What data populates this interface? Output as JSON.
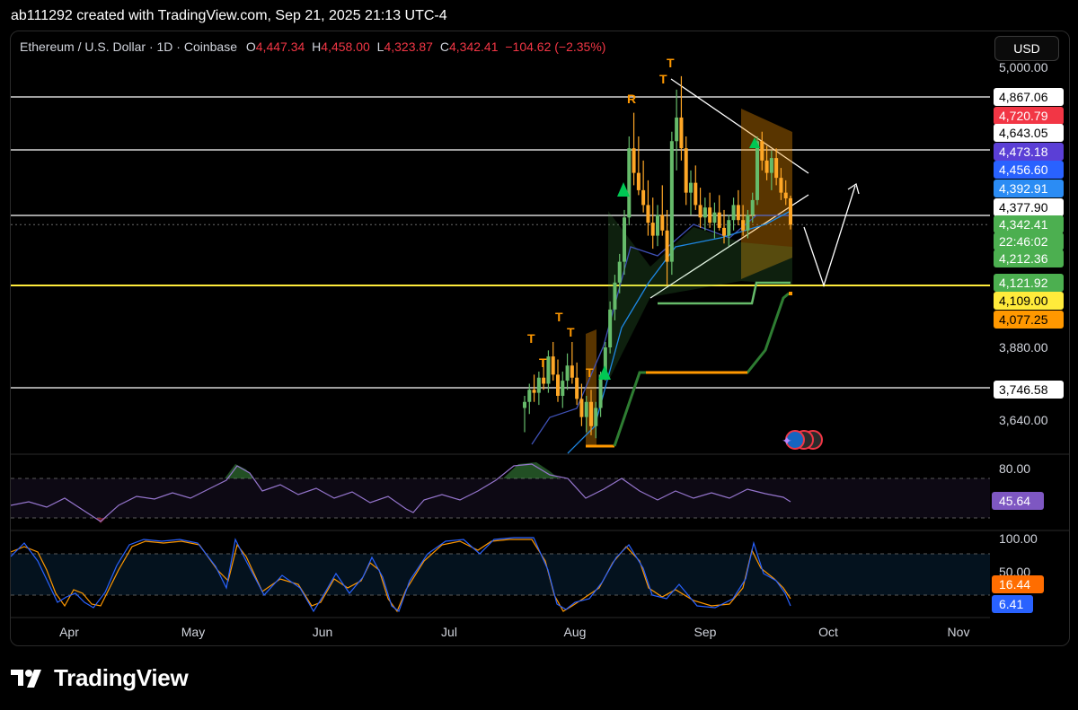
{
  "header": {
    "caption": "ab111292 created with TradingView.com, Sep 21, 2025 21:13 UTC-4"
  },
  "legend": {
    "symbol": "Ethereum / U.S. Dollar · 1D · Coinbase",
    "open_label": "O",
    "open": "4,447.34",
    "high_label": "H",
    "high": "4,458.00",
    "low_label": "L",
    "low": "4,323.87",
    "close_label": "C",
    "close": "4,342.41",
    "change": "−104.62 (−2.35%)"
  },
  "currency_button": "USD",
  "brand": {
    "name": "TradingView",
    "logo_icon": "tradingview-logo-icon"
  },
  "chart_data": {
    "type": "candlestick",
    "price_axis": {
      "ticks": [
        "5,000.00",
        "3,880.00",
        "3,640.00"
      ],
      "badges": [
        {
          "value": 4867.06,
          "label": "4,867.06",
          "bg": "#ffffff",
          "fg": "#000000"
        },
        {
          "value": 4720.79,
          "label": "4,720.79",
          "bg": "#f23645",
          "fg": "#ffffff"
        },
        {
          "value": 4643.05,
          "label": "4,643.05",
          "bg": "#ffffff",
          "fg": "#000000"
        },
        {
          "value": 4473.18,
          "label": "4,473.18",
          "bg": "#5b3fd6",
          "fg": "#ffffff"
        },
        {
          "value": 4456.6,
          "label": "4,456.60",
          "bg": "#2962ff",
          "fg": "#ffffff"
        },
        {
          "value": 4392.91,
          "label": "4,392.91",
          "bg": "#2b8cf4",
          "fg": "#ffffff"
        },
        {
          "value": 4377.9,
          "label": "4,377.90",
          "bg": "#ffffff",
          "fg": "#000000"
        },
        {
          "value": 4342.41,
          "label": "4,342.41",
          "bg": "#4caf50",
          "fg": "#ffffff"
        },
        {
          "value": 4342.41,
          "label": "22:46:02",
          "bg": "#4caf50",
          "fg": "#ffffff"
        },
        {
          "value": 4212.36,
          "label": "4,212.36",
          "bg": "#4caf50",
          "fg": "#ffffff"
        },
        {
          "value": 4121.92,
          "label": "4,121.92",
          "bg": "#4caf50",
          "fg": "#ffffff"
        },
        {
          "value": 4109.0,
          "label": "4,109.00",
          "bg": "#ffeb3b",
          "fg": "#000000"
        },
        {
          "value": 4077.25,
          "label": "4,077.25",
          "bg": "#ff9800",
          "fg": "#000000"
        },
        {
          "value": 3746.58,
          "label": "3,746.58",
          "bg": "#ffffff",
          "fg": "#000000"
        }
      ]
    },
    "horizontal_levels": [
      {
        "value": 4867.06,
        "color": "#ffffff"
      },
      {
        "value": 4643.05,
        "color": "#ffffff"
      },
      {
        "value": 4377.9,
        "color": "#ffffff"
      },
      {
        "value": 4109.0,
        "color": "#ffeb3b"
      },
      {
        "value": 3746.58,
        "color": "#ffffff"
      }
    ],
    "time_axis": [
      "Apr",
      "May",
      "Jun",
      "Jul",
      "Aug",
      "Sep",
      "Oct",
      "Nov"
    ],
    "candles": [
      [
        3680,
        3720,
        3600,
        3700
      ],
      [
        3700,
        3760,
        3660,
        3740
      ],
      [
        3740,
        3790,
        3700,
        3730
      ],
      [
        3730,
        3800,
        3690,
        3780
      ],
      [
        3780,
        3840,
        3740,
        3760
      ],
      [
        3760,
        3870,
        3730,
        3850
      ],
      [
        3850,
        3900,
        3770,
        3790
      ],
      [
        3790,
        3840,
        3700,
        3720
      ],
      [
        3720,
        3800,
        3680,
        3770
      ],
      [
        3770,
        3860,
        3740,
        3820
      ],
      [
        3820,
        3900,
        3760,
        3780
      ],
      [
        3780,
        3830,
        3690,
        3710
      ],
      [
        3710,
        3760,
        3620,
        3650
      ],
      [
        3650,
        3720,
        3600,
        3700
      ],
      [
        3700,
        3740,
        3590,
        3620
      ],
      [
        3620,
        3700,
        3580,
        3680
      ],
      [
        3680,
        3800,
        3650,
        3790
      ],
      [
        3790,
        3900,
        3770,
        3880
      ],
      [
        3880,
        4050,
        3860,
        4020
      ],
      [
        4020,
        4150,
        3980,
        4120
      ],
      [
        4120,
        4230,
        4080,
        4200
      ],
      [
        4200,
        4400,
        4150,
        4370
      ],
      [
        4370,
        4700,
        4340,
        4650
      ],
      [
        4650,
        4800,
        4500,
        4550
      ],
      [
        4550,
        4700,
        4460,
        4480
      ],
      [
        4480,
        4600,
        4390,
        4420
      ],
      [
        4420,
        4520,
        4300,
        4350
      ],
      [
        4350,
        4450,
        4250,
        4300
      ],
      [
        4300,
        4420,
        4260,
        4380
      ],
      [
        4380,
        4500,
        4300,
        4320
      ],
      [
        4320,
        4400,
        4110,
        4200
      ],
      [
        4200,
        4720,
        4150,
        4680
      ],
      [
        4680,
        4900,
        4560,
        4780
      ],
      [
        4780,
        4960,
        4600,
        4650
      ],
      [
        4650,
        4700,
        4420,
        4470
      ],
      [
        4470,
        4560,
        4380,
        4510
      ],
      [
        4510,
        4580,
        4400,
        4420
      ],
      [
        4420,
        4490,
        4330,
        4370
      ],
      [
        4370,
        4450,
        4320,
        4410
      ],
      [
        4410,
        4470,
        4330,
        4350
      ],
      [
        4350,
        4430,
        4290,
        4390
      ],
      [
        4390,
        4460,
        4320,
        4330
      ],
      [
        4330,
        4400,
        4270,
        4300
      ],
      [
        4300,
        4380,
        4260,
        4360
      ],
      [
        4360,
        4450,
        4320,
        4420
      ],
      [
        4420,
        4480,
        4340,
        4360
      ],
      [
        4360,
        4420,
        4300,
        4320
      ],
      [
        4320,
        4400,
        4290,
        4380
      ],
      [
        4380,
        4470,
        4350,
        4440
      ],
      [
        4440,
        4700,
        4420,
        4680
      ],
      [
        4680,
        4720,
        4560,
        4600
      ],
      [
        4600,
        4660,
        4520,
        4550
      ],
      [
        4550,
        4640,
        4480,
        4610
      ],
      [
        4610,
        4650,
        4500,
        4530
      ],
      [
        4530,
        4570,
        4440,
        4470
      ],
      [
        4470,
        4520,
        4420,
        4447
      ],
      [
        4447.34,
        4458,
        4323.87,
        4342.41
      ]
    ],
    "rsi": {
      "ticks": [
        "80.00"
      ],
      "last": 45.64,
      "last_label": "45.64"
    },
    "stoch": {
      "ticks": [
        "100.00",
        "50.00"
      ],
      "k_label": "16.44",
      "d_label": "6.41",
      "k": 16.44,
      "d": 6.41
    }
  }
}
